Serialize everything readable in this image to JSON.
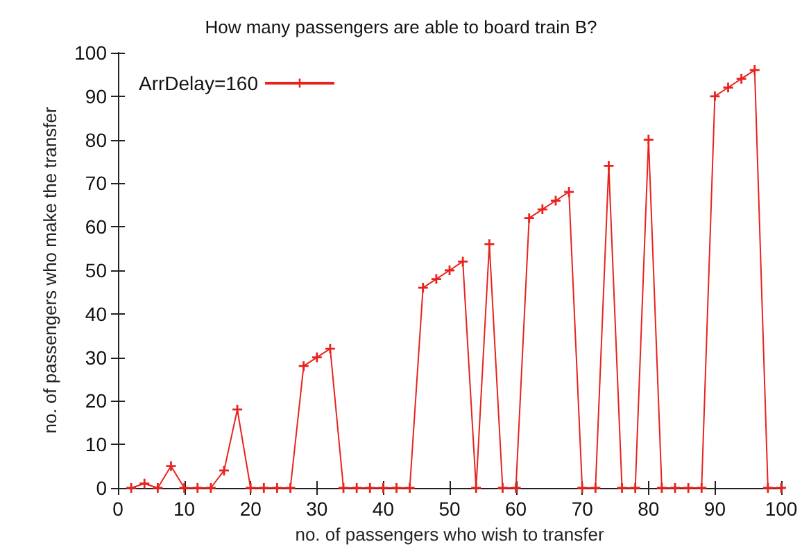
{
  "chart_data": {
    "type": "line",
    "title": "How many passengers are able to board train B?",
    "xlabel": "no. of passengers who wish to transfer",
    "ylabel": "no. of passengers who make the transfer",
    "x": [
      2,
      4,
      6,
      8,
      10,
      12,
      14,
      16,
      18,
      20,
      22,
      24,
      26,
      28,
      30,
      32,
      34,
      36,
      38,
      40,
      42,
      44,
      46,
      48,
      50,
      52,
      54,
      56,
      58,
      60,
      62,
      64,
      66,
      68,
      70,
      72,
      74,
      76,
      78,
      80,
      82,
      84,
      86,
      88,
      90,
      92,
      94,
      96,
      98,
      100
    ],
    "series": [
      {
        "name": "ArrDelay=160",
        "color": "#e8231e",
        "values": [
          0,
          1,
          0,
          5,
          0,
          0,
          0,
          4,
          18,
          0,
          0,
          0,
          0,
          28,
          30,
          32,
          0,
          0,
          0,
          0,
          0,
          0,
          46,
          48,
          50,
          52,
          0,
          56,
          0,
          0,
          62,
          64,
          66,
          68,
          0,
          0,
          74,
          0,
          0,
          80,
          0,
          0,
          0,
          0,
          90,
          92,
          94,
          96,
          0,
          0
        ]
      }
    ],
    "xlim": [
      0,
      100
    ],
    "xticks": [
      0,
      10,
      20,
      30,
      40,
      50,
      60,
      70,
      80,
      90,
      100
    ],
    "ylim": [
      0,
      100
    ],
    "yticks": [
      0,
      10,
      20,
      30,
      40,
      50,
      60,
      70,
      80,
      90,
      100
    ],
    "grid": false,
    "legend": "top left",
    "marker": "cross",
    "line_style": "solid"
  }
}
